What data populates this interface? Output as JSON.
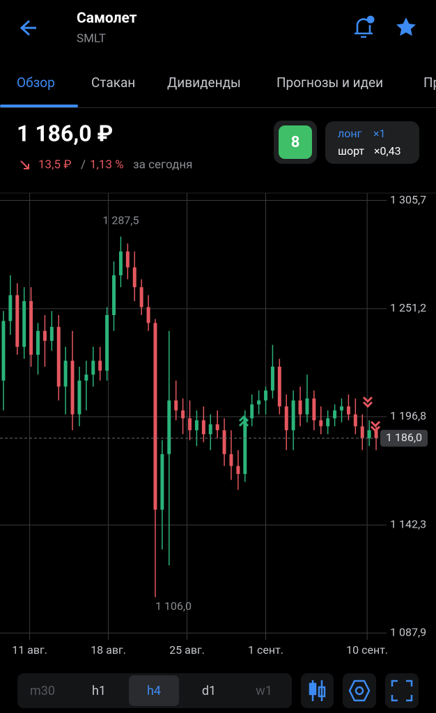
{
  "header": {
    "title": "Самолет",
    "ticker": "SMLT"
  },
  "tabs": {
    "items": [
      "Обзор",
      "Стакан",
      "Дивиденды",
      "Прогнозы и идеи",
      "Пр"
    ],
    "active": 0
  },
  "quote": {
    "price": "1 186,0 ₽",
    "change": "13,5 ₽",
    "separator": "/",
    "change_percent": "1,13 %",
    "period": "за сегодня",
    "score": "8",
    "long_label": "лонг",
    "long_value": "×1",
    "short_label": "шорт",
    "short_value": "×0,43"
  },
  "chart_data": {
    "type": "candlestick",
    "up_color": "#2bb37a",
    "down_color": "#e5575f",
    "ylim": [
      1084.5,
      1309.4
    ],
    "yticks": [
      {
        "value": 1087.9,
        "label": "1 087,9"
      },
      {
        "value": 1142.3,
        "label": "1 142,3"
      },
      {
        "value": 1196.8,
        "label": "1 196,8"
      },
      {
        "value": 1251.2,
        "label": "1 251,2"
      },
      {
        "value": 1305.7,
        "label": "1 305,7"
      }
    ],
    "xlim": [
      -0.5,
      54.5
    ],
    "xticks": [
      {
        "value": 3.8,
        "label": "11 авг."
      },
      {
        "value": 15.2,
        "label": "18 авг."
      },
      {
        "value": 26.6,
        "label": "25 авг."
      },
      {
        "value": 38,
        "label": "1 сент."
      },
      {
        "value": 52.7,
        "label": "10 сент."
      }
    ],
    "grid": true,
    "annotations": [
      {
        "value": 1287.5,
        "label": "1 287,5"
      },
      {
        "value": 1106,
        "label": "1 106,0"
      }
    ],
    "last_price": {
      "value": 1186,
      "label": "1 186,0"
    },
    "ohlc": [
      [
        1215,
        1250,
        1200,
        1245
      ],
      [
        1245,
        1268,
        1238,
        1258
      ],
      [
        1258,
        1264,
        1228,
        1232
      ],
      [
        1232,
        1262,
        1226,
        1255
      ],
      [
        1255,
        1262,
        1222,
        1228
      ],
      [
        1228,
        1244,
        1218,
        1240
      ],
      [
        1240,
        1248,
        1222,
        1235
      ],
      [
        1235,
        1250,
        1230,
        1242
      ],
      [
        1242,
        1248,
        1205,
        1212
      ],
      [
        1212,
        1232,
        1198,
        1225
      ],
      [
        1225,
        1240,
        1190,
        1198
      ],
      [
        1198,
        1222,
        1192,
        1215
      ],
      [
        1215,
        1225,
        1200,
        1218
      ],
      [
        1218,
        1232,
        1212,
        1225
      ],
      [
        1225,
        1232,
        1215,
        1220
      ],
      [
        1220,
        1252,
        1215,
        1248
      ],
      [
        1248,
        1275,
        1240,
        1268
      ],
      [
        1268,
        1287.5,
        1262,
        1280
      ],
      [
        1280,
        1284,
        1266,
        1272
      ],
      [
        1272,
        1280,
        1255,
        1262
      ],
      [
        1262,
        1266,
        1248,
        1252
      ],
      [
        1252,
        1258,
        1240,
        1244
      ],
      [
        1244,
        1246,
        1106,
        1150
      ],
      [
        1150,
        1185,
        1130,
        1178
      ],
      [
        1178,
        1240,
        1122,
        1205
      ],
      [
        1205,
        1215,
        1195,
        1200
      ],
      [
        1200,
        1206,
        1188,
        1196
      ],
      [
        1196,
        1205,
        1185,
        1190
      ],
      [
        1190,
        1200,
        1182,
        1195
      ],
      [
        1195,
        1202,
        1184,
        1188
      ],
      [
        1188,
        1198,
        1180,
        1193
      ],
      [
        1193,
        1200,
        1186,
        1190
      ],
      [
        1190,
        1196,
        1172,
        1178
      ],
      [
        1178,
        1190,
        1165,
        1172
      ],
      [
        1172,
        1180,
        1160,
        1168
      ],
      [
        1168,
        1200,
        1164,
        1196
      ],
      [
        1196,
        1208,
        1192,
        1203
      ],
      [
        1203,
        1210,
        1198,
        1205
      ],
      [
        1205,
        1212,
        1198,
        1210
      ],
      [
        1210,
        1233,
        1206,
        1222
      ],
      [
        1222,
        1226,
        1198,
        1202
      ],
      [
        1202,
        1208,
        1180,
        1190
      ],
      [
        1190,
        1210,
        1180,
        1205
      ],
      [
        1205,
        1212,
        1192,
        1198
      ],
      [
        1198,
        1218,
        1194,
        1206
      ],
      [
        1206,
        1210,
        1190,
        1195
      ],
      [
        1195,
        1202,
        1188,
        1192
      ],
      [
        1192,
        1200,
        1188,
        1196
      ],
      [
        1196,
        1203,
        1192,
        1200
      ],
      [
        1200,
        1206,
        1194,
        1202
      ],
      [
        1202,
        1208,
        1195,
        1198
      ],
      [
        1198,
        1206,
        1188,
        1192
      ],
      [
        1192,
        1198,
        1180,
        1186
      ],
      [
        1186,
        1195,
        1182,
        1190
      ],
      [
        1190,
        1192,
        1180,
        1186
      ]
    ]
  },
  "timeframes": {
    "items": [
      "m30",
      "h1",
      "h4",
      "d1",
      "w1"
    ],
    "active": 2
  }
}
